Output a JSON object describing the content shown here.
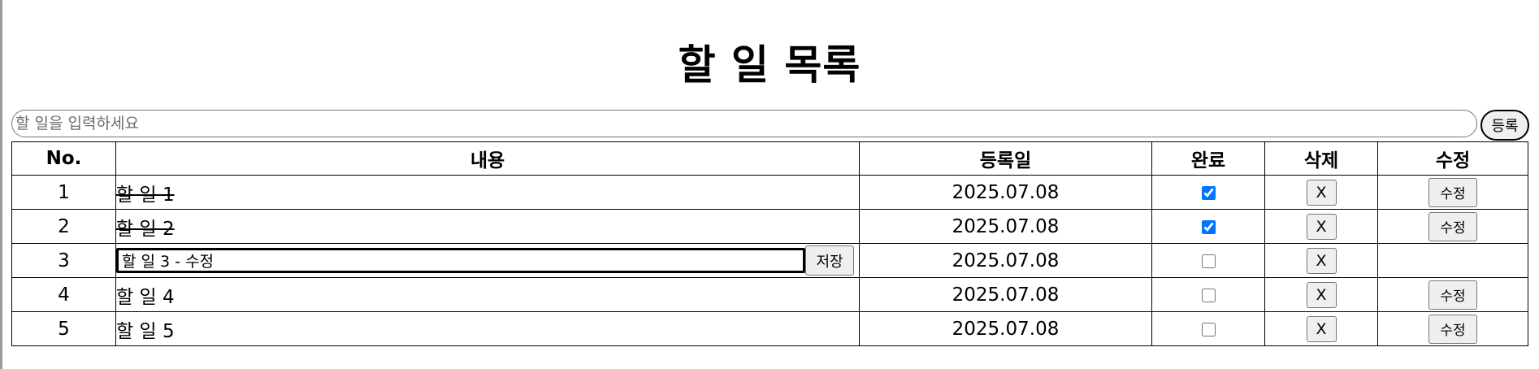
{
  "page": {
    "title": "할 일 목록"
  },
  "entry": {
    "placeholder": "할 일을 입력하세요",
    "submit_label": "등록"
  },
  "table": {
    "headers": {
      "no": "No.",
      "content": "내용",
      "date": "등록일",
      "done": "완료",
      "delete": "삭제",
      "edit": "수정"
    },
    "delete_label": "X",
    "edit_label": "수정",
    "save_label": "저장",
    "rows": [
      {
        "no": "1",
        "content": "할 일 1",
        "date": "2025.07.08",
        "done": true,
        "editing": false
      },
      {
        "no": "2",
        "content": "할 일 2",
        "date": "2025.07.08",
        "done": true,
        "editing": false
      },
      {
        "no": "3",
        "content": "할 일 3 - 수정",
        "date": "2025.07.08",
        "done": false,
        "editing": true
      },
      {
        "no": "4",
        "content": "할 일 4",
        "date": "2025.07.08",
        "done": false,
        "editing": false
      },
      {
        "no": "5",
        "content": "할 일 5",
        "date": "2025.07.08",
        "done": false,
        "editing": false
      }
    ]
  }
}
